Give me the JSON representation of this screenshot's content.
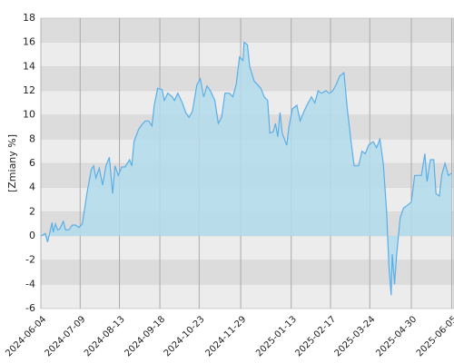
{
  "chart_data": {
    "type": "area",
    "y_label": "[Zmiany %]",
    "x": [
      "2024-06-04",
      "2024-06-08",
      "2024-06-10",
      "2024-06-12",
      "2024-06-14",
      "2024-06-15",
      "2024-06-17",
      "2024-06-19",
      "2024-06-21",
      "2024-06-24",
      "2024-06-26",
      "2024-06-29",
      "2024-07-02",
      "2024-07-05",
      "2024-07-08",
      "2024-07-11",
      "2024-07-15",
      "2024-07-19",
      "2024-07-21",
      "2024-07-23",
      "2024-07-26",
      "2024-07-29",
      "2024-08-01",
      "2024-08-04",
      "2024-08-07",
      "2024-08-09",
      "2024-08-12",
      "2024-08-15",
      "2024-08-18",
      "2024-08-22",
      "2024-08-24",
      "2024-08-26",
      "2024-08-30",
      "2024-09-02",
      "2024-09-05",
      "2024-09-08",
      "2024-09-11",
      "2024-09-13",
      "2024-09-16",
      "2024-09-20",
      "2024-09-22",
      "2024-09-25",
      "2024-09-29",
      "2024-10-01",
      "2024-10-04",
      "2024-10-08",
      "2024-10-11",
      "2024-10-14",
      "2024-10-17",
      "2024-10-21",
      "2024-10-24",
      "2024-10-27",
      "2024-10-30",
      "2024-11-02",
      "2024-11-06",
      "2024-11-09",
      "2024-11-12",
      "2024-11-15",
      "2024-11-19",
      "2024-11-22",
      "2024-11-25",
      "2024-11-28",
      "2024-12-01",
      "2024-12-02",
      "2024-12-05",
      "2024-12-07",
      "2024-12-11",
      "2024-12-14",
      "2024-12-17",
      "2024-12-20",
      "2024-12-23",
      "2024-12-25",
      "2024-12-28",
      "2024-12-30",
      "2025-01-01",
      "2025-01-03",
      "2025-01-05",
      "2025-01-09",
      "2025-01-11",
      "2025-01-14",
      "2025-01-18",
      "2025-01-21",
      "2025-01-24",
      "2025-01-27",
      "2025-01-31",
      "2025-02-03",
      "2025-02-06",
      "2025-02-09",
      "2025-02-13",
      "2025-02-16",
      "2025-02-19",
      "2025-02-22",
      "2025-02-25",
      "2025-03-01",
      "2025-03-04",
      "2025-03-07",
      "2025-03-10",
      "2025-03-14",
      "2025-03-17",
      "2025-03-20",
      "2025-03-23",
      "2025-03-27",
      "2025-03-30",
      "2025-04-02",
      "2025-04-05",
      "2025-04-08",
      "2025-04-10",
      "2025-04-12",
      "2025-04-13",
      "2025-04-15",
      "2025-04-17",
      "2025-04-20",
      "2025-04-23",
      "2025-04-26",
      "2025-04-30",
      "2025-05-03",
      "2025-05-06",
      "2025-05-09",
      "2025-05-12",
      "2025-05-14",
      "2025-05-17",
      "2025-05-20",
      "2025-05-22",
      "2025-05-25",
      "2025-05-27",
      "2025-05-30",
      "2025-06-02",
      "2025-06-05"
    ],
    "values": [
      0,
      0.2,
      -0.5,
      0.3,
      1.1,
      0.3,
      1.0,
      0.5,
      0.6,
      1.2,
      0.5,
      0.5,
      0.9,
      0.9,
      0.7,
      1.0,
      3.5,
      5.5,
      5.8,
      4.8,
      5.6,
      4.2,
      5.8,
      6.5,
      3.5,
      5.8,
      5.0,
      5.7,
      5.7,
      6.3,
      5.8,
      7.8,
      8.8,
      9.2,
      9.5,
      9.5,
      9.1,
      10.8,
      12.2,
      12.1,
      11.2,
      11.8,
      11.5,
      11.2,
      11.8,
      11.0,
      10.2,
      9.8,
      10.3,
      12.5,
      13.0,
      11.5,
      12.4,
      12.0,
      11.2,
      9.3,
      9.8,
      11.8,
      11.8,
      11.5,
      12.5,
      14.8,
      14.5,
      16.0,
      15.8,
      14.0,
      12.8,
      12.5,
      12.2,
      11.5,
      11.2,
      8.5,
      8.6,
      9.3,
      8.2,
      10.2,
      8.5,
      7.5,
      9.0,
      10.5,
      10.8,
      9.5,
      10.2,
      10.8,
      11.5,
      11.0,
      12.0,
      11.8,
      12.0,
      11.8,
      12.0,
      12.5,
      13.2,
      13.5,
      10.5,
      8.0,
      5.8,
      5.8,
      7.0,
      6.8,
      7.5,
      7.8,
      7.3,
      8.0,
      6.0,
      2.0,
      -2.5,
      -4.9,
      -1.5,
      -4.0,
      -1.5,
      1.5,
      2.3,
      2.5,
      2.8,
      5.0,
      5.0,
      5.0,
      6.8,
      4.5,
      6.3,
      6.3,
      3.5,
      3.3,
      5.0,
      6.0,
      5.0,
      5.2
    ],
    "color": "#5aaee8",
    "fill_color": "#b3dcec",
    "xlim": [
      "2024-06-04",
      "2025-06-07"
    ],
    "xticks": [
      "2024-06-04",
      "2024-07-09",
      "2024-08-13",
      "2024-09-18",
      "2024-10-23",
      "2024-11-29",
      "2025-01-13",
      "2025-02-17",
      "2025-03-24",
      "2025-04-30",
      "2025-06-05"
    ],
    "ylim": [
      -6,
      18
    ],
    "yticks": [
      -6,
      -4,
      -2,
      0,
      2,
      4,
      6,
      8,
      10,
      12,
      14,
      16,
      18
    ],
    "grid": true
  }
}
